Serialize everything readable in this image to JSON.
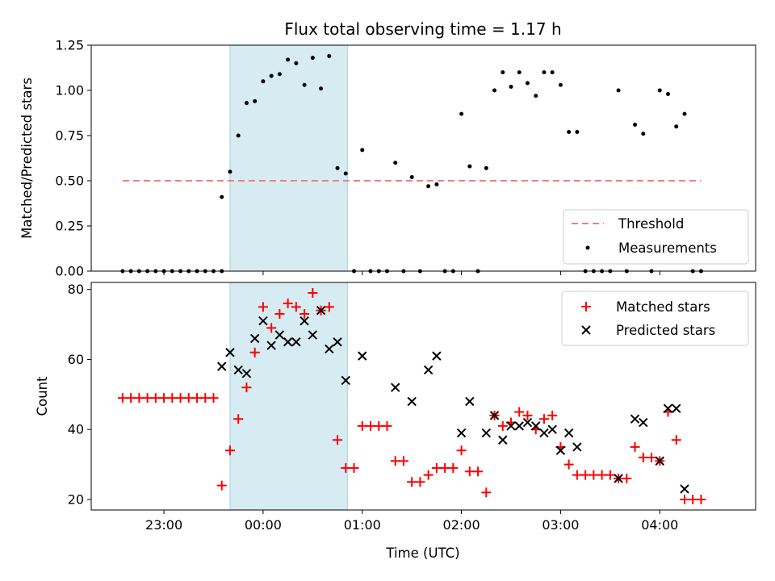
{
  "chart_data": [
    {
      "type": "scatter",
      "title": "Flux total observing time = 1.17 h",
      "xlabel": "",
      "ylabel": "Matched/Predicted stars",
      "ylim": [
        0,
        1.25
      ],
      "yticks": [
        0.0,
        0.25,
        0.5,
        0.75,
        1.0,
        1.25
      ],
      "ytick_labels": [
        "0.00",
        "0.25",
        "0.50",
        "0.75",
        "1.00",
        "1.25"
      ],
      "xlim": [
        "22:16",
        "04:58"
      ],
      "xticks": [
        "23:00",
        "00:00",
        "01:00",
        "02:00",
        "03:00",
        "04:00"
      ],
      "shaded_span": [
        "23:40",
        "00:51"
      ],
      "threshold": {
        "name": "Threshold",
        "y": 0.5,
        "x_range": [
          "22:35",
          "04:25"
        ],
        "color": "#f08080"
      },
      "legend_position": "lower-right",
      "series": [
        {
          "name": "Measurements",
          "color": "#000000",
          "points": [
            [
              "22:35",
              0
            ],
            [
              "22:40",
              0
            ],
            [
              "22:45",
              0
            ],
            [
              "22:50",
              0
            ],
            [
              "22:55",
              0
            ],
            [
              "23:00",
              0
            ],
            [
              "23:05",
              0
            ],
            [
              "23:10",
              0
            ],
            [
              "23:15",
              0
            ],
            [
              "23:20",
              0
            ],
            [
              "23:25",
              0
            ],
            [
              "23:30",
              0
            ],
            [
              "23:35",
              0
            ],
            [
              "23:35",
              0.41
            ],
            [
              "23:40",
              0.55
            ],
            [
              "23:45",
              0.75
            ],
            [
              "23:50",
              0.93
            ],
            [
              "23:55",
              0.94
            ],
            [
              "00:00",
              1.05
            ],
            [
              "00:05",
              1.08
            ],
            [
              "00:10",
              1.09
            ],
            [
              "00:15",
              1.17
            ],
            [
              "00:20",
              1.15
            ],
            [
              "00:25",
              1.03
            ],
            [
              "00:30",
              1.18
            ],
            [
              "00:35",
              1.01
            ],
            [
              "00:40",
              1.19
            ],
            [
              "00:45",
              0.57
            ],
            [
              "00:50",
              0.54
            ],
            [
              "00:55",
              0
            ],
            [
              "01:00",
              0.67
            ],
            [
              "01:05",
              0
            ],
            [
              "01:10",
              0
            ],
            [
              "01:15",
              0
            ],
            [
              "01:20",
              0.6
            ],
            [
              "01:25",
              0
            ],
            [
              "01:30",
              0.52
            ],
            [
              "01:35",
              0
            ],
            [
              "01:40",
              0.47
            ],
            [
              "01:45",
              0.48
            ],
            [
              "01:50",
              0
            ],
            [
              "01:55",
              0
            ],
            [
              "02:00",
              0.87
            ],
            [
              "02:05",
              0.58
            ],
            [
              "02:10",
              0
            ],
            [
              "02:15",
              0.57
            ],
            [
              "02:20",
              1.0
            ],
            [
              "02:25",
              1.1
            ],
            [
              "02:30",
              1.02
            ],
            [
              "02:35",
              1.1
            ],
            [
              "02:40",
              1.04
            ],
            [
              "02:45",
              0.97
            ],
            [
              "02:50",
              1.1
            ],
            [
              "02:55",
              1.1
            ],
            [
              "03:00",
              1.03
            ],
            [
              "03:05",
              0.77
            ],
            [
              "03:10",
              0.77
            ],
            [
              "03:15",
              0
            ],
            [
              "03:20",
              0
            ],
            [
              "03:25",
              0
            ],
            [
              "03:30",
              0
            ],
            [
              "03:35",
              1.0
            ],
            [
              "03:40",
              0
            ],
            [
              "03:45",
              0.81
            ],
            [
              "03:50",
              0.76
            ],
            [
              "03:55",
              0
            ],
            [
              "04:00",
              1.0
            ],
            [
              "04:05",
              0.98
            ],
            [
              "04:10",
              0.8
            ],
            [
              "04:15",
              0.87
            ],
            [
              "04:20",
              0
            ],
            [
              "04:25",
              0
            ]
          ]
        }
      ],
      "legend": [
        "Threshold",
        "Measurements"
      ]
    },
    {
      "type": "scatter",
      "title": "",
      "xlabel": "Time (UTC)",
      "ylabel": "Count",
      "ylim": [
        17,
        82
      ],
      "yticks": [
        20,
        40,
        60,
        80
      ],
      "ytick_labels": [
        "20",
        "40",
        "60",
        "80"
      ],
      "xlim": [
        "22:16",
        "04:58"
      ],
      "xticks": [
        "23:00",
        "00:00",
        "01:00",
        "02:00",
        "03:00",
        "04:00"
      ],
      "xtick_labels": [
        "23:00",
        "00:00",
        "01:00",
        "02:00",
        "03:00",
        "04:00"
      ],
      "shaded_span": [
        "23:40",
        "00:51"
      ],
      "legend_position": "upper-right",
      "series": [
        {
          "name": "Matched stars",
          "marker": "plus",
          "color": "#ff0000",
          "points": [
            [
              "22:35",
              49
            ],
            [
              "22:40",
              49
            ],
            [
              "22:45",
              49
            ],
            [
              "22:50",
              49
            ],
            [
              "22:55",
              49
            ],
            [
              "23:00",
              49
            ],
            [
              "23:05",
              49
            ],
            [
              "23:10",
              49
            ],
            [
              "23:15",
              49
            ],
            [
              "23:20",
              49
            ],
            [
              "23:25",
              49
            ],
            [
              "23:30",
              49
            ],
            [
              "23:35",
              24
            ],
            [
              "23:40",
              34
            ],
            [
              "23:45",
              43
            ],
            [
              "23:50",
              52
            ],
            [
              "23:55",
              62
            ],
            [
              "00:00",
              75
            ],
            [
              "00:05",
              69
            ],
            [
              "00:10",
              73
            ],
            [
              "00:15",
              76
            ],
            [
              "00:20",
              75
            ],
            [
              "00:25",
              73
            ],
            [
              "00:30",
              79
            ],
            [
              "00:35",
              74
            ],
            [
              "00:40",
              75
            ],
            [
              "00:45",
              37
            ],
            [
              "00:50",
              29
            ],
            [
              "00:55",
              29
            ],
            [
              "01:00",
              41
            ],
            [
              "01:05",
              41
            ],
            [
              "01:10",
              41
            ],
            [
              "01:15",
              41
            ],
            [
              "01:20",
              31
            ],
            [
              "01:25",
              31
            ],
            [
              "01:30",
              25
            ],
            [
              "01:35",
              25
            ],
            [
              "01:40",
              27
            ],
            [
              "01:45",
              29
            ],
            [
              "01:50",
              29
            ],
            [
              "01:55",
              29
            ],
            [
              "02:00",
              34
            ],
            [
              "02:05",
              28
            ],
            [
              "02:10",
              28
            ],
            [
              "02:15",
              22
            ],
            [
              "02:20",
              44
            ],
            [
              "02:25",
              41
            ],
            [
              "02:30",
              42
            ],
            [
              "02:35",
              45
            ],
            [
              "02:40",
              44
            ],
            [
              "02:45",
              40
            ],
            [
              "02:50",
              43
            ],
            [
              "02:55",
              44
            ],
            [
              "03:00",
              35
            ],
            [
              "03:05",
              30
            ],
            [
              "03:10",
              27
            ],
            [
              "03:15",
              27
            ],
            [
              "03:20",
              27
            ],
            [
              "03:25",
              27
            ],
            [
              "03:30",
              27
            ],
            [
              "03:35",
              26
            ],
            [
              "03:40",
              26
            ],
            [
              "03:45",
              35
            ],
            [
              "03:50",
              32
            ],
            [
              "03:55",
              32
            ],
            [
              "04:00",
              31
            ],
            [
              "04:05",
              45
            ],
            [
              "04:10",
              37
            ],
            [
              "04:15",
              20
            ],
            [
              "04:20",
              20
            ],
            [
              "04:25",
              20
            ]
          ]
        },
        {
          "name": "Predicted stars",
          "marker": "x",
          "color": "#000000",
          "points": [
            [
              "23:35",
              58
            ],
            [
              "23:40",
              62
            ],
            [
              "23:45",
              57
            ],
            [
              "23:50",
              56
            ],
            [
              "23:55",
              66
            ],
            [
              "00:00",
              71
            ],
            [
              "00:05",
              64
            ],
            [
              "00:10",
              67
            ],
            [
              "00:15",
              65
            ],
            [
              "00:20",
              65
            ],
            [
              "00:25",
              71
            ],
            [
              "00:30",
              67
            ],
            [
              "00:35",
              74
            ],
            [
              "00:40",
              63
            ],
            [
              "00:45",
              65
            ],
            [
              "00:50",
              54
            ],
            [
              "01:00",
              61
            ],
            [
              "01:20",
              52
            ],
            [
              "01:30",
              48
            ],
            [
              "01:40",
              57
            ],
            [
              "01:45",
              61
            ],
            [
              "02:00",
              39
            ],
            [
              "02:05",
              48
            ],
            [
              "02:15",
              39
            ],
            [
              "02:20",
              44
            ],
            [
              "02:25",
              37
            ],
            [
              "02:30",
              41
            ],
            [
              "02:35",
              41
            ],
            [
              "02:40",
              42
            ],
            [
              "02:45",
              41
            ],
            [
              "02:50",
              39
            ],
            [
              "02:55",
              40
            ],
            [
              "03:00",
              34
            ],
            [
              "03:05",
              39
            ],
            [
              "03:10",
              35
            ],
            [
              "03:35",
              26
            ],
            [
              "03:45",
              43
            ],
            [
              "03:50",
              42
            ],
            [
              "04:00",
              31
            ],
            [
              "04:05",
              46
            ],
            [
              "04:10",
              46
            ],
            [
              "04:15",
              23
            ]
          ]
        }
      ],
      "legend": [
        "Matched stars",
        "Predicted stars"
      ]
    }
  ]
}
